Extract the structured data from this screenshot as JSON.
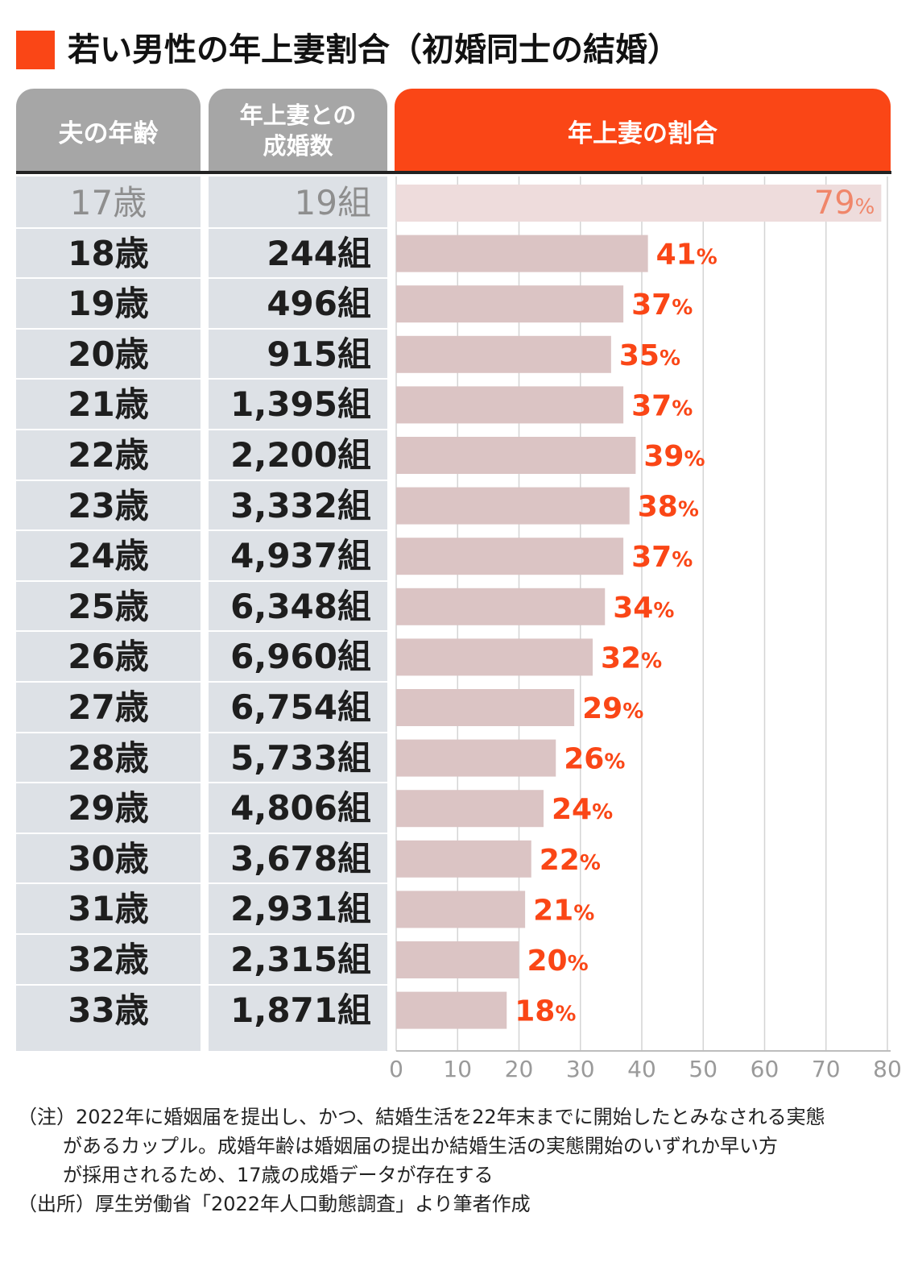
{
  "title": "若い男性の年上妻割合（初婚同士の結婚）",
  "colors": {
    "accent": "#fa4616",
    "header_gray": "#a6a6a6",
    "bar": "#dbc4c4",
    "bar_muted": "#eedcdc",
    "row_bg": "#dde1e6"
  },
  "headers": {
    "age": "夫の年齢",
    "count_line1": "年上妻との",
    "count_line2": "成婚数",
    "ratio": "年上妻の割合"
  },
  "chart_data": {
    "type": "bar",
    "orientation": "horizontal",
    "categories": [
      "17歳",
      "18歳",
      "19歳",
      "20歳",
      "21歳",
      "22歳",
      "23歳",
      "24歳",
      "25歳",
      "26歳",
      "27歳",
      "28歳",
      "29歳",
      "30歳",
      "31歳",
      "32歳",
      "33歳"
    ],
    "counts": [
      "19組",
      "244組",
      "496組",
      "915組",
      "1,395組",
      "2,200組",
      "3,332組",
      "4,937組",
      "6,348組",
      "6,960組",
      "6,754組",
      "5,733組",
      "4,806組",
      "3,678組",
      "2,931組",
      "2,315組",
      "1,871組"
    ],
    "values": [
      79,
      41,
      37,
      35,
      37,
      39,
      38,
      37,
      34,
      32,
      29,
      26,
      24,
      22,
      21,
      20,
      18
    ],
    "value_labels": [
      "79",
      "41",
      "37",
      "35",
      "37",
      "39",
      "38",
      "37",
      "34",
      "32",
      "29",
      "26",
      "24",
      "22",
      "21",
      "20",
      "18"
    ],
    "value_unit": "%",
    "muted_categories": [
      "17歳"
    ],
    "xlim": [
      0,
      80
    ],
    "xticks": [
      "0",
      "10",
      "20",
      "30",
      "40",
      "50",
      "60",
      "70",
      "80"
    ],
    "grid": true
  },
  "notes": {
    "line1": "（注）2022年に婚姻届を提出し、かつ、結婚生活を22年末までに開始したとみなされる実態",
    "line2": "があるカップル。成婚年齢は婚姻届の提出か結婚生活の実態開始のいずれか早い方",
    "line3": "が採用されるため、17歳の成婚データが存在する",
    "source": "（出所）厚生労働省「2022年人口動態調査」より筆者作成"
  }
}
